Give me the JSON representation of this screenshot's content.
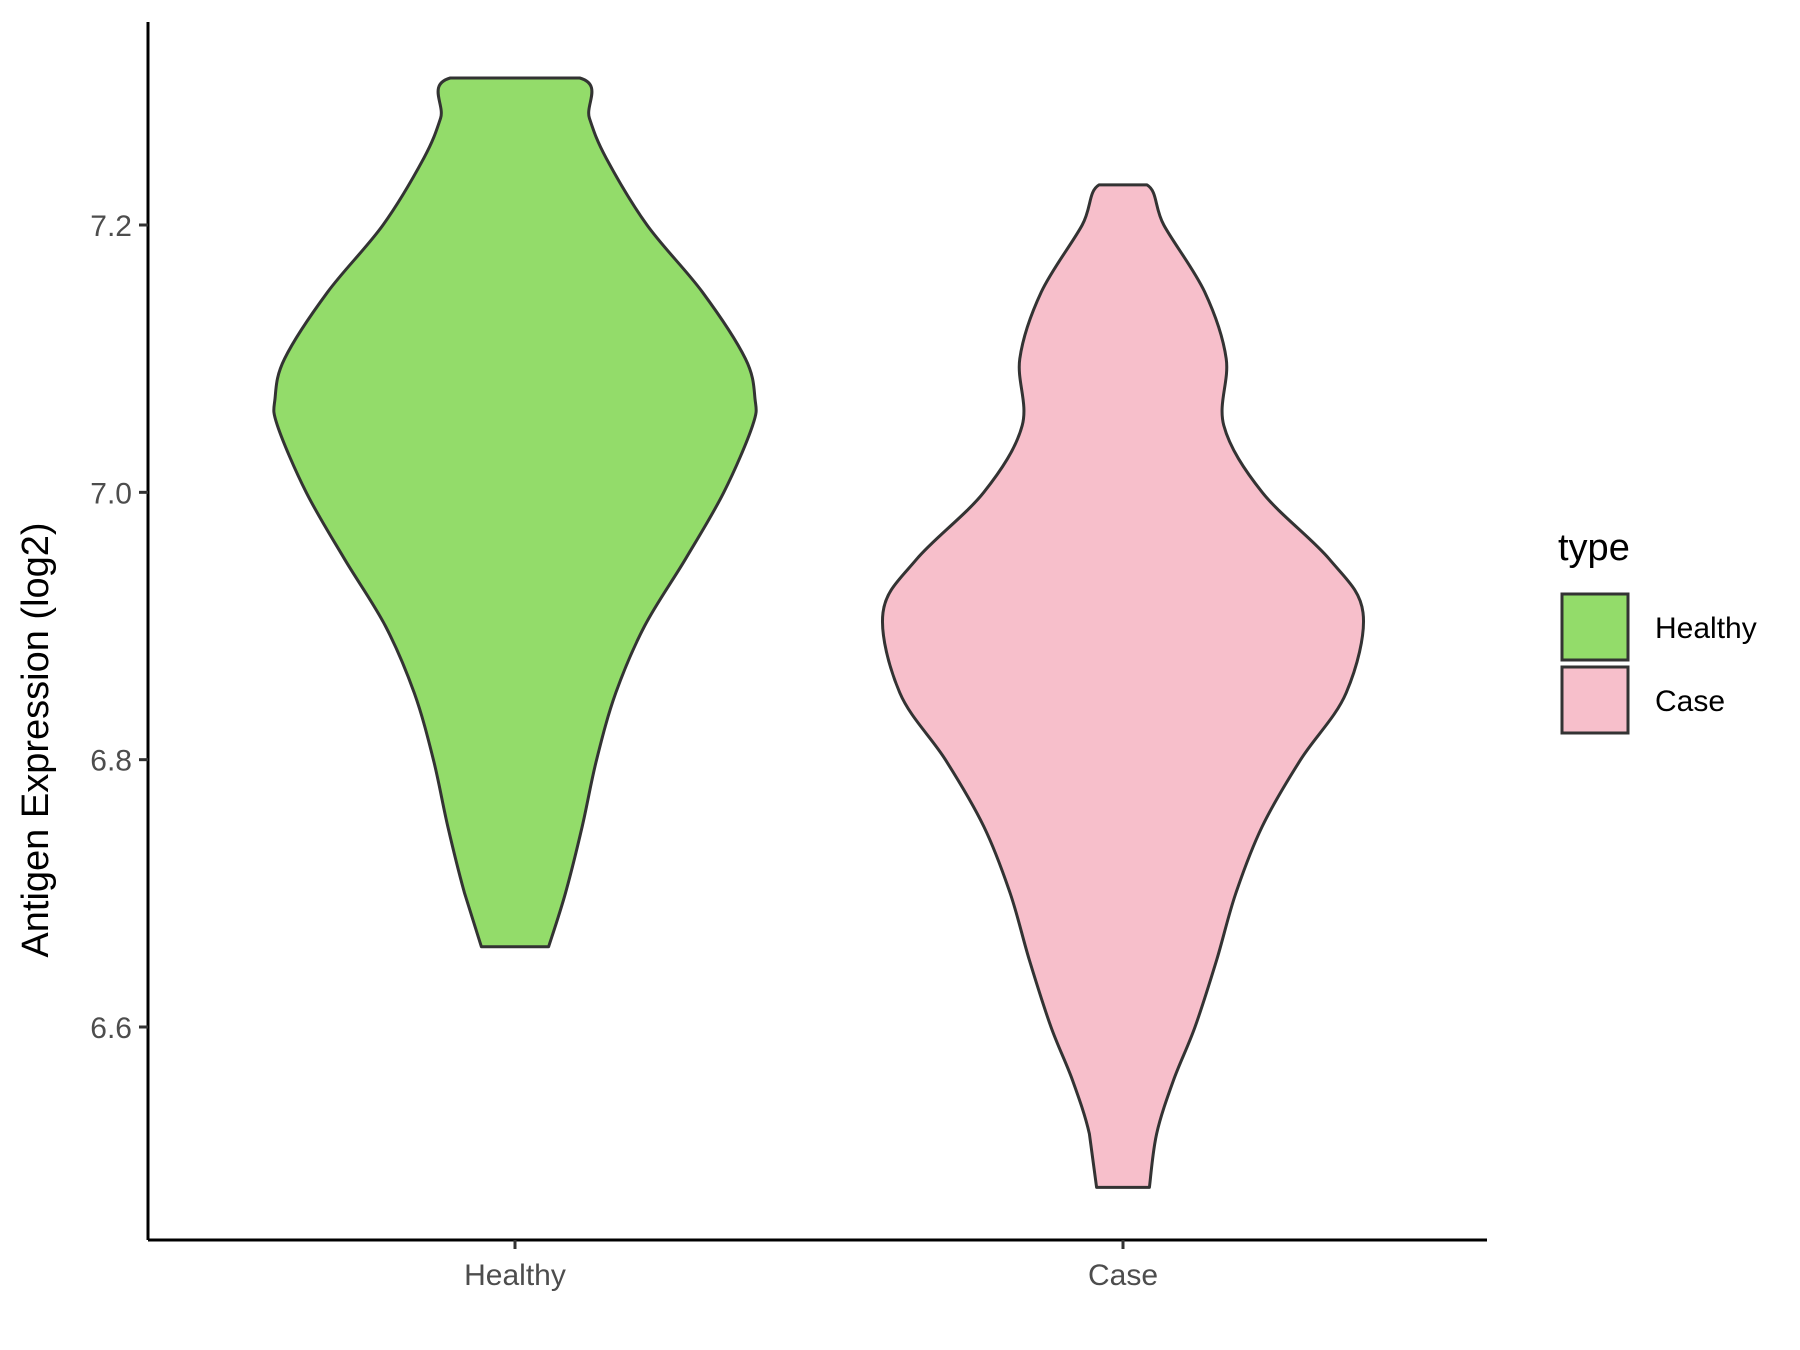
{
  "chart_data": {
    "type": "violin",
    "title": "",
    "xlabel": "",
    "ylabel": "Antigen Expression (log2)",
    "categories": [
      "Healthy",
      "Case"
    ],
    "y_ticks": [
      "6.6",
      "6.8",
      "7.0",
      "7.2"
    ],
    "ylim": [
      6.46,
      7.37
    ],
    "grid": false,
    "legend": {
      "title": "type",
      "position": "right",
      "entries": [
        {
          "label": "Healthy",
          "color": "#93dc6a"
        },
        {
          "label": "Case",
          "color": "#f7bfcb"
        }
      ]
    },
    "series": [
      {
        "name": "Healthy",
        "color": "#93dc6a",
        "min": 6.66,
        "max": 7.31,
        "density_profile": [
          [
            6.66,
            0.14
          ],
          [
            6.7,
            0.21
          ],
          [
            6.75,
            0.28
          ],
          [
            6.8,
            0.34
          ],
          [
            6.85,
            0.42
          ],
          [
            6.9,
            0.54
          ],
          [
            6.95,
            0.71
          ],
          [
            7.0,
            0.87
          ],
          [
            7.05,
            0.99
          ],
          [
            7.07,
            1.0
          ],
          [
            7.1,
            0.96
          ],
          [
            7.15,
            0.78
          ],
          [
            7.2,
            0.55
          ],
          [
            7.25,
            0.38
          ],
          [
            7.28,
            0.31
          ],
          [
            7.31,
            0.27
          ]
        ]
      },
      {
        "name": "Case",
        "color": "#f7bfcb",
        "min": 6.48,
        "max": 7.23,
        "density_profile": [
          [
            6.48,
            0.11
          ],
          [
            6.52,
            0.14
          ],
          [
            6.56,
            0.21
          ],
          [
            6.6,
            0.3
          ],
          [
            6.65,
            0.39
          ],
          [
            6.7,
            0.47
          ],
          [
            6.75,
            0.58
          ],
          [
            6.8,
            0.74
          ],
          [
            6.85,
            0.93
          ],
          [
            6.91,
            1.0
          ],
          [
            6.95,
            0.86
          ],
          [
            7.0,
            0.58
          ],
          [
            7.05,
            0.42
          ],
          [
            7.1,
            0.43
          ],
          [
            7.15,
            0.34
          ],
          [
            7.2,
            0.17
          ],
          [
            7.23,
            0.1
          ]
        ]
      }
    ]
  }
}
